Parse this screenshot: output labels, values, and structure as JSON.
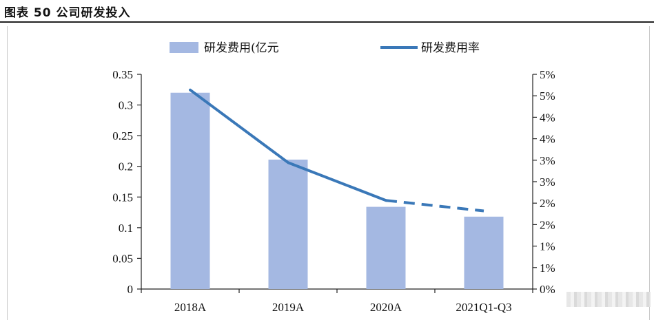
{
  "figure_title": "图表 50 公司研发投入",
  "chart_data": {
    "type": "bar",
    "categories": [
      "2018A",
      "2019A",
      "2020A",
      "2021Q1-Q3"
    ],
    "series": [
      {
        "name": "研发费用(亿元",
        "type": "bar",
        "axis": "left",
        "color": "#a4b8e2",
        "values": [
          0.32,
          0.211,
          0.134,
          0.118
        ]
      },
      {
        "name": "研发费用率",
        "type": "line",
        "axis": "right",
        "color": "#3a78b8",
        "values": [
          5.1,
          3.24,
          2.27,
          2.0
        ],
        "dashed_last_segment": true
      }
    ],
    "left_axis": {
      "ylim": [
        0,
        0.35
      ],
      "ticks": [
        "0",
        "0.05",
        "0.1",
        "0.15",
        "0.2",
        "0.25",
        "0.3",
        "0.35"
      ]
    },
    "right_axis": {
      "ylim": [
        0,
        5.5
      ],
      "ticks": [
        "0%",
        "1%",
        "1%",
        "2%",
        "2%",
        "3%",
        "3%",
        "4%",
        "4%",
        "5%",
        "5%"
      ]
    },
    "grid": false,
    "legend_position": "top"
  }
}
